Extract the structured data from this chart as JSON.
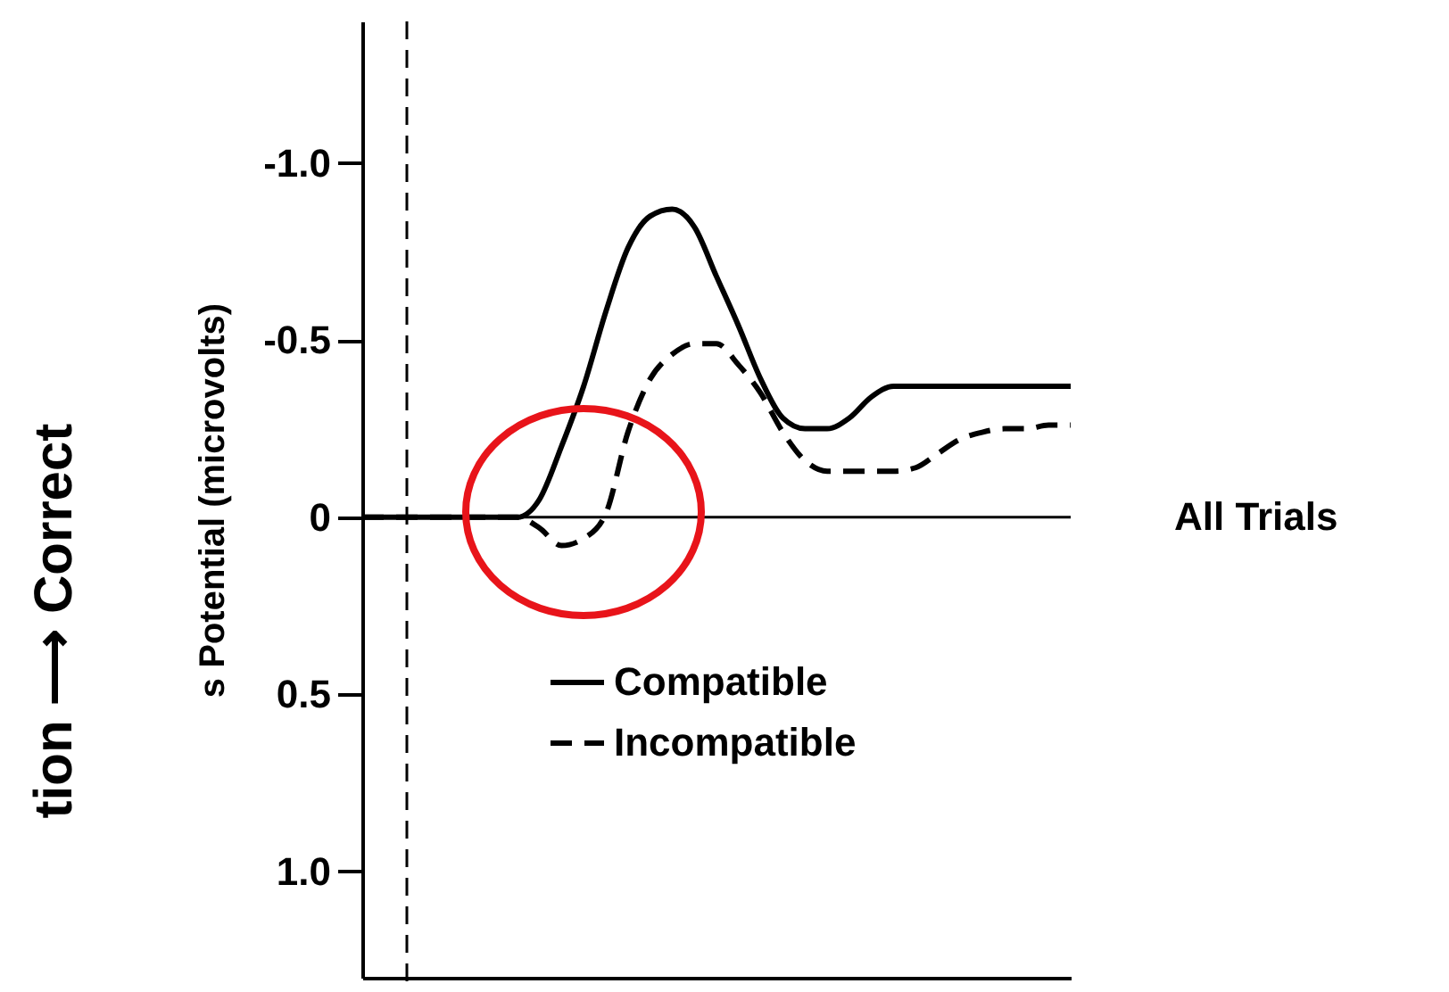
{
  "chart_data": {
    "type": "line",
    "ylabel": "s Potential (microvolts)",
    "annotations": [
      "tion ⟶ Correct",
      "All Trials"
    ],
    "categories": [
      null,
      null,
      null,
      null,
      null,
      null,
      null,
      null,
      null,
      null,
      null,
      null,
      null,
      null,
      null,
      null,
      null,
      null,
      null,
      null,
      null,
      null,
      null,
      null,
      null,
      null,
      null,
      null,
      null,
      null,
      null,
      null,
      null
    ],
    "series": [
      {
        "name": "Compatible",
        "color": "#000000",
        "line_style": "solid",
        "values": [
          0,
          0,
          0,
          0,
          0,
          0,
          0,
          0,
          -0.05,
          -0.2,
          -0.37,
          -0.58,
          -0.76,
          -0.85,
          -0.87,
          -0.82,
          -0.68,
          -0.54,
          -0.39,
          -0.28,
          -0.25,
          -0.25,
          -0.28,
          -0.34,
          -0.37,
          -0.37,
          -0.37,
          -0.37,
          -0.37,
          -0.37,
          -0.37,
          -0.37,
          -0.37
        ]
      },
      {
        "name": "Incompatible",
        "color": "#000000",
        "line_style": "dashed",
        "values": [
          0,
          0,
          0,
          0,
          0,
          0,
          0,
          0,
          0.03,
          0.08,
          0.06,
          -0.01,
          -0.24,
          -0.39,
          -0.46,
          -0.49,
          -0.49,
          -0.43,
          -0.35,
          -0.24,
          -0.16,
          -0.13,
          -0.13,
          -0.13,
          -0.13,
          -0.14,
          -0.18,
          -0.22,
          -0.24,
          -0.25,
          -0.25,
          -0.26,
          -0.26
        ]
      }
    ],
    "ylim": [
      1.3,
      -1.4
    ],
    "yticks": [
      {
        "value": -1,
        "label": "-1.0"
      },
      {
        "value": -0.5,
        "label": "-0.5"
      },
      0,
      {
        "value": 0.5,
        "label": "0.5"
      },
      {
        "value": 1,
        "label": "1.0"
      }
    ],
    "ref_lines": [
      {
        "axis": "y",
        "value": 0
      }
    ],
    "grid": false,
    "legend": "bottom right",
    "marker": "none"
  }
}
